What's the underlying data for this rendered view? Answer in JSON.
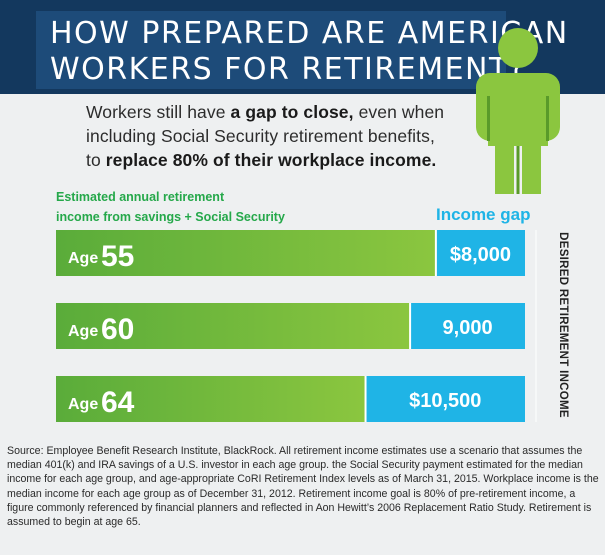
{
  "header": {
    "title_line1": "HOW PREPARED ARE AMERICAN",
    "title_line2": "WORKERS FOR RETIREMENT?"
  },
  "subtitle": {
    "line1_pre": "Workers still have ",
    "line1_bold": "a gap to close,",
    "line1_post": " even when",
    "line2": "including Social Security retirement benefits,",
    "line3_pre": "to ",
    "line3_bold": "replace 80% of their workplace income."
  },
  "legend": {
    "estimated_line1": "Estimated annual retirement",
    "estimated_line2": "income from savings + Social Security",
    "income_gap": "Income gap",
    "desired": "DESIRED RETIREMENT INCOME"
  },
  "colors": {
    "green": "#8bc63f",
    "green_dark": "#5aac3a",
    "blue": "#1fb4e6",
    "navy": "#13385e"
  },
  "chart_data": {
    "type": "bar",
    "stacked": true,
    "orientation": "horizontal",
    "categories": [
      {
        "prefix": "Age",
        "age": "55"
      },
      {
        "prefix": "Age",
        "age": "60"
      },
      {
        "prefix": "Age",
        "age": "64"
      }
    ],
    "series": [
      {
        "name": "Estimated annual retirement income from savings + Social Security",
        "values": [
          0.81,
          0.755,
          0.66
        ]
      },
      {
        "name": "Income gap",
        "values": [
          0.19,
          0.245,
          0.34
        ],
        "labels": [
          "$8,000",
          "9,000",
          "$10,500"
        ]
      }
    ]
  },
  "source": "Source: Employee Benefit Research Institute, BlackRock. All retirement income estimates use a scenario that assumes the median 401(k) and IRA savings of a U.S. investor in each age group. the Social Security payment estimated for the median income for each age group, and age-appropriate CoRI Retirement Index levels as of March 31, 2015. Workplace income is the median income for each age group as of December 31, 2012. Retirement income goal is 80% of pre-retirement income, a figure commonly referenced by financial planners and reflected in Aon Hewitt’s 2006 Replacement Ratio Study. Retirement is assumed to begin at age 65."
}
